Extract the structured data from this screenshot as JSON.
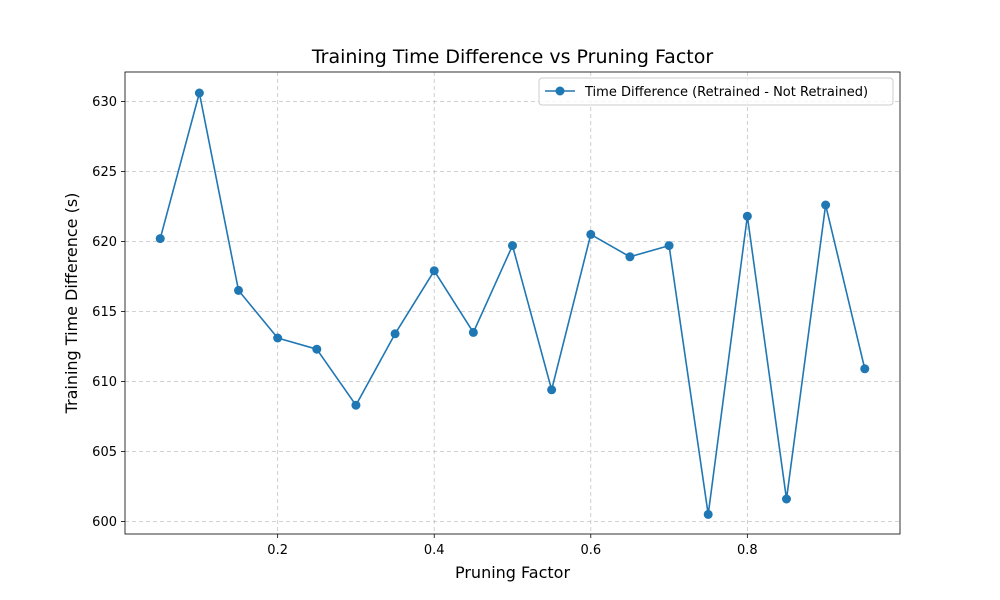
{
  "chart_data": {
    "type": "line",
    "title": "Training Time Difference vs Pruning Factor",
    "xlabel": "Pruning Factor",
    "ylabel": "Training Time Difference (s)",
    "xlim": [
      0.005,
      0.995
    ],
    "ylim": [
      599.1,
      632.1
    ],
    "xticks": [
      "0.2",
      "0.4",
      "0.6",
      "0.8"
    ],
    "yticks": [
      "600",
      "605",
      "610",
      "615",
      "620",
      "625",
      "630"
    ],
    "grid": true,
    "legend_position": "top-right",
    "color": "#1f77b4",
    "series": [
      {
        "name": "Time Difference (Retrained - Not Retrained)",
        "x": [
          0.05,
          0.1,
          0.15,
          0.2,
          0.25,
          0.3,
          0.35,
          0.4,
          0.45,
          0.5,
          0.55,
          0.6,
          0.65,
          0.7,
          0.75,
          0.8,
          0.85,
          0.9,
          0.95
        ],
        "y": [
          620.2,
          630.6,
          616.5,
          613.1,
          612.3,
          608.3,
          613.4,
          617.9,
          613.5,
          619.7,
          609.4,
          620.5,
          618.9,
          619.7,
          600.5,
          621.8,
          601.6,
          622.6,
          610.9
        ]
      }
    ]
  }
}
